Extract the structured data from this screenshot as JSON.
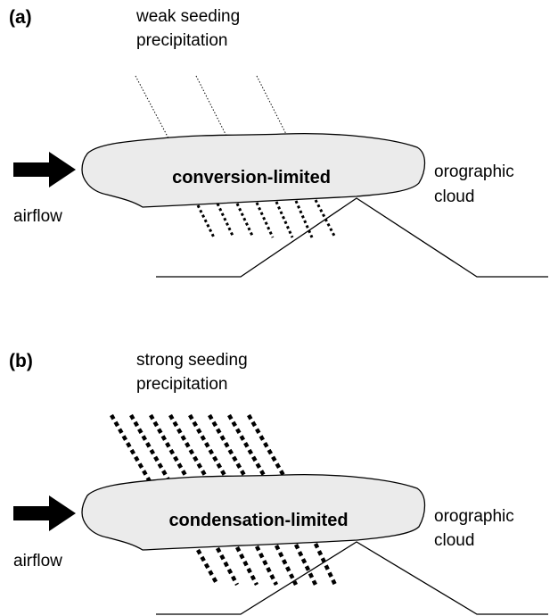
{
  "panels": [
    {
      "label": "(a)",
      "seeding": [
        "weak seeding",
        "precipitation"
      ],
      "cloud_regime": "conversion-limited",
      "inflow": "airflow",
      "cloud_label": [
        "orographic",
        "cloud"
      ]
    },
    {
      "label": "(b)",
      "seeding": [
        "strong seeding",
        "precipitation"
      ],
      "cloud_regime": "condensation-limited",
      "inflow": "airflow",
      "cloud_label": [
        "orographic",
        "cloud"
      ]
    }
  ]
}
